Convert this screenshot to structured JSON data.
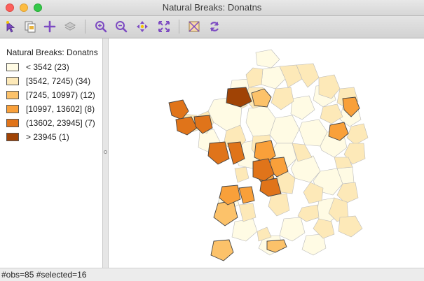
{
  "window": {
    "title": "Natural Breaks: Donatns"
  },
  "toolbar": {
    "buttons": [
      {
        "icon": "select-arrow-icon"
      },
      {
        "icon": "copy-image-icon"
      },
      {
        "icon": "add-plus-icon"
      },
      {
        "icon": "layers-icon"
      },
      {
        "icon": "zoom-in-icon"
      },
      {
        "icon": "zoom-out-icon"
      },
      {
        "icon": "pan-icon"
      },
      {
        "icon": "fit-extent-icon"
      },
      {
        "icon": "map-options-icon"
      },
      {
        "icon": "refresh-icon"
      }
    ]
  },
  "legend": {
    "title": "Natural Breaks: Donatns",
    "items": [
      {
        "label": "< 3542 (23)",
        "color": "#fffbe4"
      },
      {
        "label": "[3542, 7245) (34)",
        "color": "#fde9b8"
      },
      {
        "label": "[7245, 10997) (12)",
        "color": "#fcc26a"
      },
      {
        "label": "[10997, 13602] (8)",
        "color": "#f9a03a"
      },
      {
        "label": "(13602, 23945] (7)",
        "color": "#e0741a"
      },
      {
        "label": "> 23945 (1)",
        "color": "#a04305"
      }
    ]
  },
  "status": {
    "text": "#obs=85 #selected=16"
  },
  "colors": {
    "boundary": "#bbbbbb",
    "selected_boundary": "#444444"
  }
}
